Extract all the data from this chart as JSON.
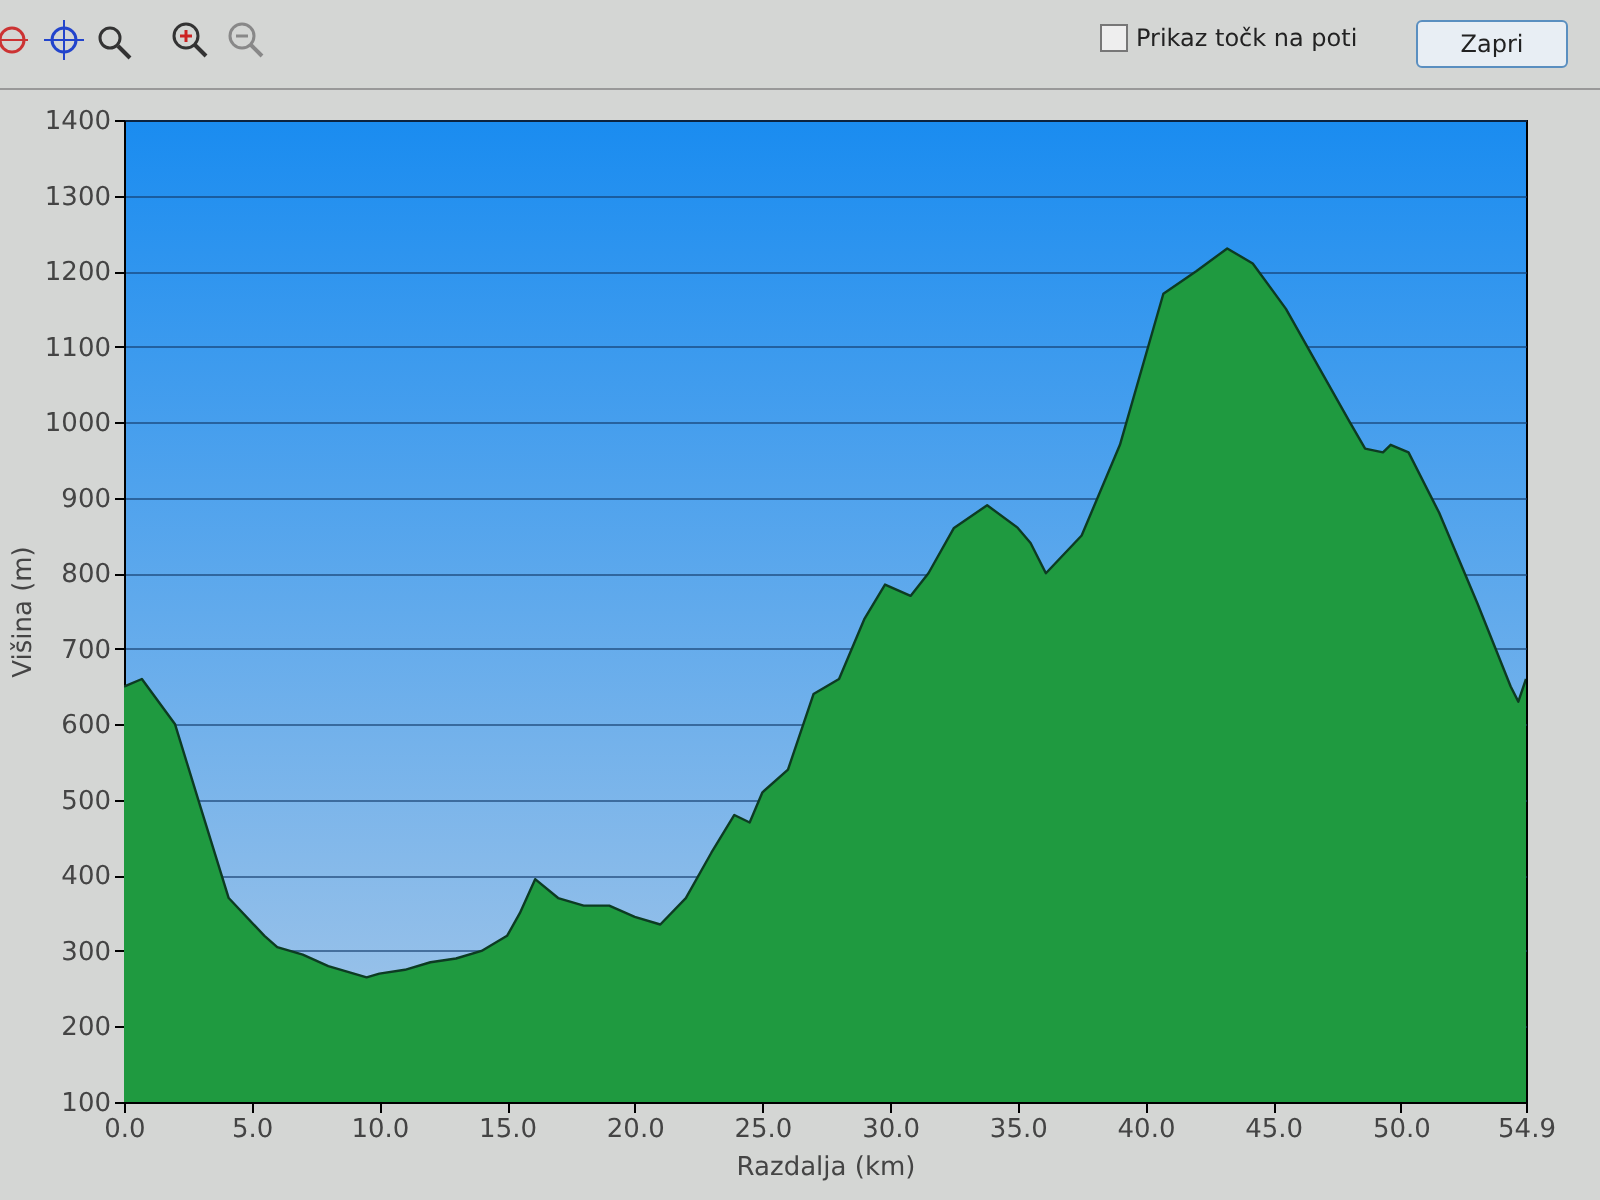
{
  "chart_data": {
    "type": "area",
    "xlabel": "Razdalja   (km)",
    "ylabel": "Višina (m)",
    "annotations": [
      "Prikaz točk na poti",
      "Zapri"
    ],
    "x": [
      0,
      0.7,
      2,
      3,
      4.1,
      5.5,
      6,
      7,
      8,
      8.5,
      9.5,
      10,
      11,
      12,
      13,
      14,
      15,
      15.5,
      16.1,
      17,
      18,
      19,
      20,
      21,
      22,
      23,
      23.9,
      24.5,
      25,
      26,
      27,
      28,
      29,
      29.8,
      30.8,
      31.5,
      32.5,
      33.8,
      35,
      35.5,
      36.1,
      37.5,
      39,
      40.7,
      42,
      43.2,
      44.2,
      45.5,
      47,
      48,
      48.6,
      49.3,
      49.6,
      50.3,
      51.5,
      53,
      54.3,
      54.6,
      54.9
    ],
    "series": [
      {
        "color": "#1f9a40",
        "values": [
          650,
          660,
          600,
          490,
          370,
          320,
          305,
          295,
          280,
          275,
          265,
          270,
          275,
          285,
          290,
          300,
          320,
          350,
          395,
          370,
          360,
          360,
          345,
          335,
          370,
          430,
          480,
          470,
          510,
          540,
          640,
          660,
          740,
          785,
          770,
          800,
          860,
          890,
          860,
          840,
          800,
          850,
          970,
          1170,
          1200,
          1230,
          1210,
          1150,
          1060,
          1000,
          965,
          960,
          970,
          960,
          880,
          760,
          650,
          630,
          660
        ]
      }
    ],
    "xlim": [
      0,
      54.9
    ],
    "ylim": [
      100,
      1400
    ],
    "xticks": [
      {
        "value": 0,
        "label": "0.0"
      },
      {
        "value": 5,
        "label": "5.0"
      },
      {
        "value": 10,
        "label": "10.0"
      },
      {
        "value": 15,
        "label": "15.0"
      },
      {
        "value": 20,
        "label": "20.0"
      },
      {
        "value": 25,
        "label": "25.0"
      },
      {
        "value": 30,
        "label": "30.0"
      },
      {
        "value": 35,
        "label": "35.0"
      },
      {
        "value": 40,
        "label": "40.0"
      },
      {
        "value": 45,
        "label": "45.0"
      },
      {
        "value": 50,
        "label": "50.0"
      },
      {
        "value": 54.9,
        "label": "54.9"
      }
    ],
    "yticks": [
      100,
      200,
      300,
      400,
      500,
      600,
      700,
      800,
      900,
      1000,
      1100,
      1200,
      1300,
      1400
    ],
    "grid": "y"
  }
}
